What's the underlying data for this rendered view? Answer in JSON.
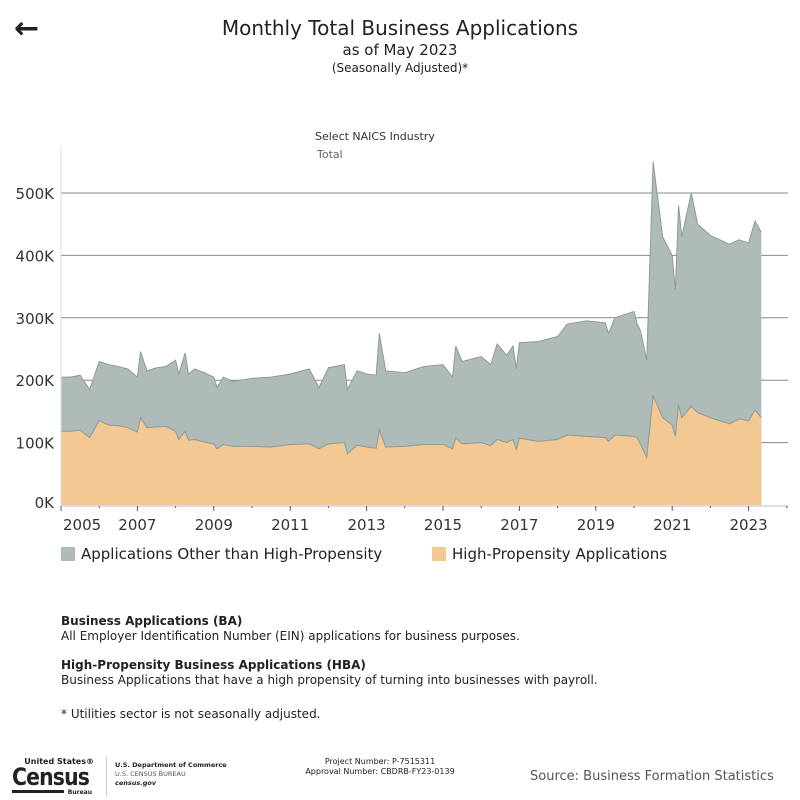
{
  "header": {
    "back_icon": "arrow-left-icon",
    "title": "Monthly Total Business Applications",
    "subtitle": "as of May 2023",
    "note": "(Seasonally Adjusted)*"
  },
  "filter": {
    "label": "Select NAICS Industry",
    "value": "Total"
  },
  "chart_data": {
    "type": "area",
    "stacked": true,
    "ylim": [
      0,
      560000
    ],
    "y_ticks": [
      "0K",
      "100K",
      "200K",
      "300K",
      "400K",
      "500K"
    ],
    "x_ticks": [
      "2005",
      "2007",
      "2009",
      "2011",
      "2013",
      "2015",
      "2017",
      "2019",
      "2021",
      "2023"
    ],
    "grid": "horizontal",
    "legend_placement": "bottom",
    "colors": {
      "other": "#afbbb9",
      "hba": "#f4c892",
      "line": "#8f9a98"
    },
    "series": [
      {
        "name": "Applications Other than High-Propensity"
      },
      {
        "name": "High-Propensity Applications"
      }
    ],
    "points": [
      [
        "2005-01",
        205,
        118
      ],
      [
        "2005-04",
        205,
        118
      ],
      [
        "2005-07",
        208,
        120
      ],
      [
        "2005-10",
        185,
        108
      ],
      [
        "2006-01",
        230,
        135
      ],
      [
        "2006-04",
        225,
        128
      ],
      [
        "2006-07",
        222,
        127
      ],
      [
        "2006-10",
        218,
        124
      ],
      [
        "2007-01",
        205,
        117
      ],
      [
        "2007-02",
        246,
        140
      ],
      [
        "2007-04",
        215,
        124
      ],
      [
        "2007-07",
        220,
        125
      ],
      [
        "2007-10",
        222,
        126
      ],
      [
        "2008-01",
        232,
        118
      ],
      [
        "2008-02",
        210,
        105
      ],
      [
        "2008-04",
        244,
        118
      ],
      [
        "2008-05",
        210,
        104
      ],
      [
        "2008-07",
        218,
        105
      ],
      [
        "2008-10",
        212,
        101
      ],
      [
        "2009-01",
        205,
        98
      ],
      [
        "2009-02",
        188,
        90
      ],
      [
        "2009-04",
        205,
        97
      ],
      [
        "2009-07",
        198,
        94
      ],
      [
        "2010-01",
        203,
        94
      ],
      [
        "2010-07",
        205,
        93
      ],
      [
        "2011-01",
        210,
        97
      ],
      [
        "2011-07",
        218,
        98
      ],
      [
        "2011-10",
        188,
        90
      ],
      [
        "2012-01",
        220,
        98
      ],
      [
        "2012-06",
        225,
        100
      ],
      [
        "2012-07",
        185,
        82
      ],
      [
        "2012-10",
        215,
        96
      ],
      [
        "2013-01",
        210,
        93
      ],
      [
        "2013-04",
        208,
        91
      ],
      [
        "2013-05",
        275,
        120
      ],
      [
        "2013-07",
        215,
        93
      ],
      [
        "2014-01",
        212,
        94
      ],
      [
        "2014-07",
        222,
        97
      ],
      [
        "2015-01",
        225,
        97
      ],
      [
        "2015-04",
        205,
        90
      ],
      [
        "2015-05",
        255,
        108
      ],
      [
        "2015-07",
        230,
        98
      ],
      [
        "2016-01",
        238,
        100
      ],
      [
        "2016-04",
        225,
        95
      ],
      [
        "2016-06",
        258,
        105
      ],
      [
        "2016-09",
        240,
        100
      ],
      [
        "2016-11",
        255,
        105
      ],
      [
        "2016-12",
        218,
        89
      ],
      [
        "2017-01",
        260,
        107
      ],
      [
        "2017-07",
        262,
        102
      ],
      [
        "2018-01",
        270,
        105
      ],
      [
        "2018-04",
        290,
        112
      ],
      [
        "2018-10",
        295,
        110
      ],
      [
        "2019-04",
        292,
        108
      ],
      [
        "2019-05",
        275,
        102
      ],
      [
        "2019-07",
        300,
        112
      ],
      [
        "2020-01",
        310,
        110
      ],
      [
        "2020-02",
        290,
        108
      ],
      [
        "2020-03",
        280,
        98
      ],
      [
        "2020-05",
        232,
        76
      ],
      [
        "2020-07",
        550,
        175
      ],
      [
        "2020-10",
        430,
        140
      ],
      [
        "2021-01",
        400,
        128
      ],
      [
        "2021-02",
        345,
        110
      ],
      [
        "2021-03",
        480,
        160
      ],
      [
        "2021-04",
        430,
        140
      ],
      [
        "2021-07",
        500,
        158
      ],
      [
        "2021-09",
        450,
        148
      ],
      [
        "2022-01",
        432,
        140
      ],
      [
        "2022-04",
        425,
        135
      ],
      [
        "2022-07",
        418,
        130
      ],
      [
        "2022-10",
        425,
        138
      ],
      [
        "2023-01",
        420,
        135
      ],
      [
        "2023-03",
        455,
        152
      ],
      [
        "2023-05",
        437,
        140
      ]
    ],
    "point_units": "[month, total applications (thousands), high-propensity applications (thousands)]"
  },
  "definitions": [
    {
      "title": "Business Applications (BA)",
      "text": "All Employer Identification Number (EIN) applications for business purposes."
    },
    {
      "title": "High-Propensity Business Applications (HBA)",
      "text": "Business Applications that have a high propensity of turning into businesses with payroll."
    }
  ],
  "footnote": "* Utilities sector is not seasonally adjusted.",
  "footer": {
    "logo": {
      "top": "United States®",
      "main": "Census",
      "bottom": "Bureau"
    },
    "dept": "U.S. Department of Commerce",
    "bureau": "U.S. CENSUS BUREAU",
    "site": "census.gov",
    "project": "Project Number: P-7515311",
    "approval": "Approval Number: CBDRB-FY23-0139",
    "source": "Source: Business Formation Statistics"
  }
}
